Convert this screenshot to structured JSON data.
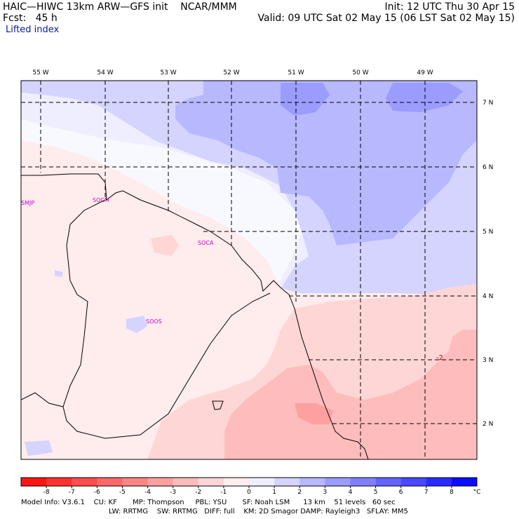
{
  "header": {
    "left_line1": "HAIC—HIWC 13km ARW—GFS init    NCAR/MMM",
    "left_line2": "Fcst:   45 h",
    "field": "Lifted index",
    "init": "Init: 12 UTC Thu 30 Apr 15",
    "valid": "Valid: 09 UTC Sat 02 May 15 (06 LST Sat 02 May 15)"
  },
  "map": {
    "lon_labels": [
      "55 W",
      "54 W",
      "53 W",
      "52 W",
      "51 W",
      "50 W",
      "49 W"
    ],
    "lat_labels": [
      "7 N",
      "6 N",
      "5 N",
      "4 N",
      "3 N",
      "2 N"
    ],
    "stations": [
      "SMJP",
      "SOCM",
      "SOCA",
      "SOOS"
    ],
    "contour_label": "-2"
  },
  "colorbar": {
    "colors": [
      "#ff1414",
      "#ff3030",
      "#ff4c4c",
      "#ff6868",
      "#ff8484",
      "#ffa0a0",
      "#ffbcbc",
      "#ffd6d6",
      "#ffecec",
      "#eeeeff",
      "#d4d4ff",
      "#b8b8ff",
      "#9c9cff",
      "#8080ff",
      "#6464ff",
      "#4848ff",
      "#2a2aff",
      "#0c0cff"
    ],
    "tick_labels": [
      "-8",
      "-7",
      "-6",
      "-5",
      "-4",
      "-3",
      "-2",
      "-1",
      "0",
      "1",
      "2",
      "3",
      "4",
      "5",
      "6",
      "7",
      "8"
    ],
    "unit": "°C"
  },
  "footer": {
    "line1": "Model Info: V3.6.1    CU: KF       MP: Thompson     PBL: YSU       SF: Noah LSM      13 km    51 levels   60 sec",
    "line2": "LW: RRTMG    SW: RRTMG   DIFF: full    KM: 2D Smagor DAMP: Rayleigh3   SFLAY: MM5"
  }
}
